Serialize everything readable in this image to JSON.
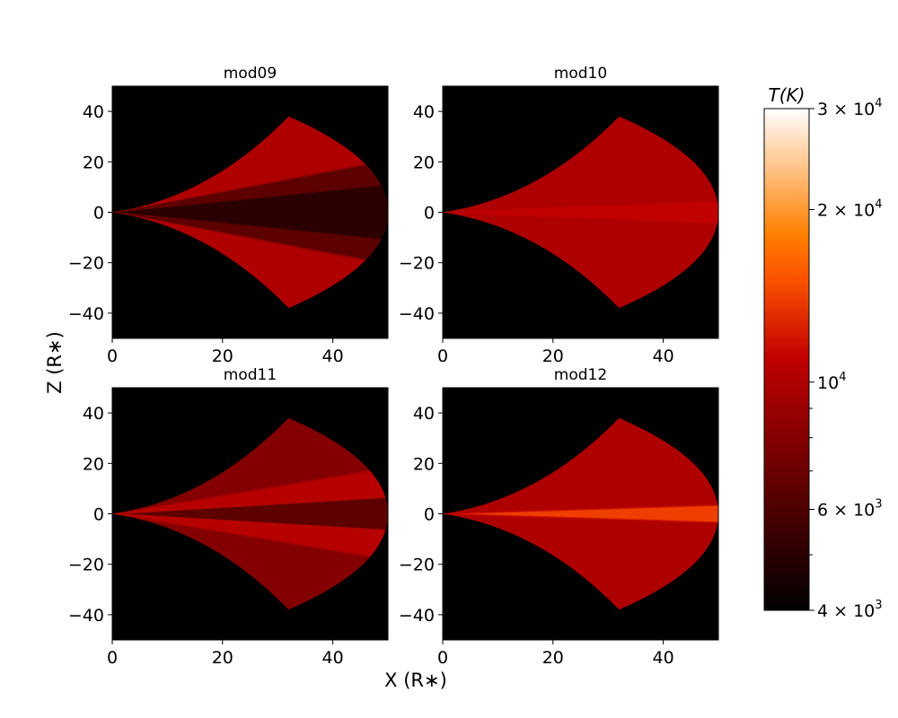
{
  "figure": {
    "xlabel": "X (R$_*$)",
    "ylabel": "Z (R$_*$)",
    "xlabel_text": "X (R∗)",
    "ylabel_text": "Z (R∗)"
  },
  "chart_data": [
    {
      "type": "heatmap",
      "title": "mod09",
      "xlim": [
        0,
        50
      ],
      "ylim": [
        -50,
        50
      ],
      "xticks": [
        "0",
        "20",
        "40"
      ],
      "yticks": [
        "40",
        "20",
        "0",
        "−20",
        "−40"
      ],
      "equator_style": "cool",
      "wedge": {
        "apex": [
          0,
          0
        ],
        "corner_x": 32,
        "corner_z": 38,
        "outer_x": 50
      },
      "bands": [
        {
          "z_frac_lo": 0.0,
          "z_frac_hi": 0.25,
          "temperature_K": 5000
        },
        {
          "z_frac_lo": 0.25,
          "z_frac_hi": 0.45,
          "temperature_K": 6500
        },
        {
          "z_frac_lo": 0.45,
          "z_frac_hi": 1.0,
          "temperature_K": 10000
        }
      ]
    },
    {
      "type": "heatmap",
      "title": "mod10",
      "xlim": [
        0,
        50
      ],
      "ylim": [
        -50,
        50
      ],
      "xticks": [
        "0",
        "20",
        "40"
      ],
      "yticks": [
        "40",
        "20",
        "0",
        "−20",
        "−40"
      ],
      "equator_style": "uniform",
      "wedge": {
        "apex": [
          0,
          0
        ],
        "corner_x": 32,
        "corner_z": 38,
        "outer_x": 50
      },
      "bands": [
        {
          "z_frac_lo": 0.0,
          "z_frac_hi": 0.1,
          "temperature_K": 11000
        },
        {
          "z_frac_lo": 0.1,
          "z_frac_hi": 1.0,
          "temperature_K": 10000
        }
      ]
    },
    {
      "type": "heatmap",
      "title": "mod11",
      "xlim": [
        0,
        50
      ],
      "ylim": [
        -50,
        50
      ],
      "xticks": [
        "0",
        "20",
        "40"
      ],
      "yticks": [
        "40",
        "20",
        "0",
        "−20",
        "−40"
      ],
      "equator_style": "cool-with-hot-rims",
      "wedge": {
        "apex": [
          0,
          0
        ],
        "corner_x": 32,
        "corner_z": 38,
        "outer_x": 50
      },
      "bands": [
        {
          "z_frac_lo": 0.0,
          "z_frac_hi": 0.15,
          "temperature_K": 6500
        },
        {
          "z_frac_lo": 0.15,
          "z_frac_hi": 0.4,
          "temperature_K": 10500
        },
        {
          "z_frac_lo": 0.4,
          "z_frac_hi": 1.0,
          "temperature_K": 8000
        }
      ]
    },
    {
      "type": "heatmap",
      "title": "mod12",
      "xlim": [
        0,
        50
      ],
      "ylim": [
        -50,
        50
      ],
      "xticks": [
        "0",
        "20",
        "40"
      ],
      "yticks": [
        "40",
        "20",
        "0",
        "−20",
        "−40"
      ],
      "equator_style": "hot-midplane",
      "wedge": {
        "apex": [
          0,
          0
        ],
        "corner_x": 32,
        "corner_z": 38,
        "outer_x": 50
      },
      "bands": [
        {
          "z_frac_lo": 0.0,
          "z_frac_hi": 0.08,
          "temperature_K": 14000
        },
        {
          "z_frac_lo": 0.08,
          "z_frac_hi": 1.0,
          "temperature_K": 10000
        }
      ]
    }
  ],
  "colorbar": {
    "label": "T(K)",
    "scale": "log",
    "vmin": 4000,
    "vmax": 30000,
    "colormap": "gist_heat",
    "major_ticks": [
      {
        "value": 30000,
        "mantissa": "3",
        "exponent": "4"
      },
      {
        "value": 20000,
        "mantissa": "2",
        "exponent": "4"
      },
      {
        "value": 10000,
        "mantissa": "",
        "exponent": "4"
      },
      {
        "value": 6000,
        "mantissa": "6",
        "exponent": "3"
      },
      {
        "value": 4000,
        "mantissa": "4",
        "exponent": "3"
      }
    ],
    "minor_ticks": [
      9000,
      8000,
      7000,
      5000
    ]
  }
}
